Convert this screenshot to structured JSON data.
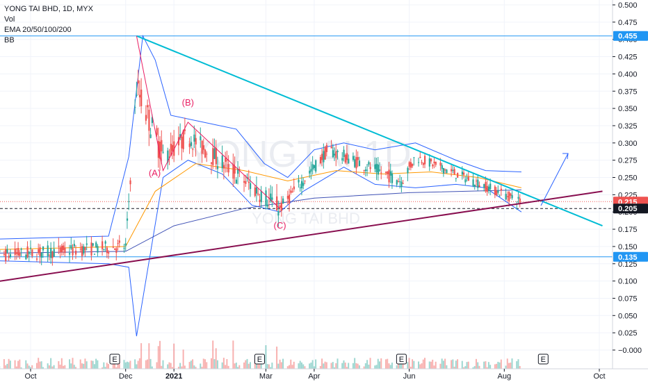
{
  "legend": {
    "symbol_line": "YONG TAI BHD, 1D, MYX",
    "vol": "Vol",
    "ema": "EMA 20/50/100/200",
    "bb": "BB"
  },
  "watermark": {
    "big": "YONGTAI 1D",
    "small": "YONG TAI BHD"
  },
  "wave_labels": [
    "(A)",
    "(B)",
    "(C)"
  ],
  "earnings_marker": "E",
  "chart_data": {
    "type": "candlestick",
    "title": "YONG TAI BHD, 1D, MYX",
    "y_ticks": [
      "0.500",
      "0.475",
      "0.450",
      "0.425",
      "0.400",
      "0.375",
      "0.350",
      "0.325",
      "0.300",
      "0.275",
      "0.250",
      "0.225",
      "0.200",
      "0.175",
      "0.150",
      "0.125",
      "0.100",
      "0.075",
      "0.050",
      "0.025",
      "−0.000"
    ],
    "x_ticks": [
      "Oct",
      "Dec",
      "2021",
      "Mar",
      "Apr",
      "Jun",
      "Aug",
      "Oct"
    ],
    "ylim": [
      -0.01,
      0.51
    ],
    "price_badges": [
      {
        "label": "0.455",
        "value": 0.455,
        "color": "#2196f3"
      },
      {
        "label": "0.215",
        "value": 0.215,
        "color": "#ef5350"
      },
      {
        "label": "0.205",
        "value": 0.205,
        "color": "#131722"
      },
      {
        "label": "0.135",
        "value": 0.135,
        "color": "#2196f3"
      }
    ],
    "horizontal_lines": [
      {
        "value": 0.455,
        "color": "#2196f3",
        "style": "solid"
      },
      {
        "value": 0.135,
        "color": "#2196f3",
        "style": "solid"
      },
      {
        "value": 0.215,
        "color": "#ef5350",
        "style": "dotted"
      },
      {
        "value": 0.205,
        "color": "#131722",
        "style": "dashed"
      }
    ],
    "trendlines": [
      {
        "name": "descending resistance",
        "color": "#00bcd4",
        "from": {
          "date": "2020-12-08",
          "value": 0.455
        },
        "to": {
          "date": "2021-10-03",
          "value": 0.18
        }
      },
      {
        "name": "ascending support",
        "color": "#880e4f",
        "from": {
          "date": "2020-08-28",
          "value": 0.095
        },
        "to": {
          "date": "2021-10-03",
          "value": 0.23
        }
      }
    ],
    "wave_points": [
      {
        "label": "(A)",
        "date": "2020-12-25",
        "value": 0.26
      },
      {
        "label": "(B)",
        "date": "2021-01-10",
        "value": 0.34
      },
      {
        "label": "(C)",
        "date": "2021-03-10",
        "value": 0.19
      }
    ],
    "earnings_dates": [
      "2020-11-24",
      "2021-02-25",
      "2021-05-27",
      "2021-08-26"
    ],
    "series": [
      {
        "name": "price",
        "type": "candlestick",
        "segments": [
          {
            "start": "2020-08-28",
            "end": "2020-12-01",
            "from": 0.135,
            "to": 0.15,
            "noise": 0.02
          },
          {
            "start": "2020-12-01",
            "end": "2020-12-08",
            "from": 0.15,
            "to": 0.38,
            "noise": 0.02
          },
          {
            "start": "2020-12-08",
            "end": "2020-12-25",
            "from": 0.38,
            "to": 0.28,
            "noise": 0.04
          },
          {
            "start": "2020-12-25",
            "end": "2021-01-10",
            "from": 0.28,
            "to": 0.31,
            "noise": 0.03
          },
          {
            "start": "2021-01-10",
            "end": "2021-03-10",
            "from": 0.31,
            "to": 0.205,
            "noise": 0.03
          },
          {
            "start": "2021-03-10",
            "end": "2021-04-10",
            "from": 0.205,
            "to": 0.29,
            "noise": 0.02
          },
          {
            "start": "2021-04-10",
            "end": "2021-05-27",
            "from": 0.29,
            "to": 0.245,
            "noise": 0.02
          },
          {
            "start": "2021-05-27",
            "end": "2021-06-05",
            "from": 0.245,
            "to": 0.28,
            "noise": 0.02
          },
          {
            "start": "2021-06-05",
            "end": "2021-08-12",
            "from": 0.28,
            "to": 0.215,
            "noise": 0.015
          }
        ]
      },
      {
        "name": "BB upper",
        "color": "#2962ff",
        "points": [
          [
            "2020-08-28",
            0.16
          ],
          [
            "2020-11-20",
            0.165
          ],
          [
            "2020-12-03",
            0.28
          ],
          [
            "2020-12-12",
            0.455
          ],
          [
            "2020-12-20",
            0.42
          ],
          [
            "2020-12-30",
            0.34
          ],
          [
            "2021-01-20",
            0.33
          ],
          [
            "2021-02-10",
            0.32
          ],
          [
            "2021-02-28",
            0.27
          ],
          [
            "2021-03-15",
            0.25
          ],
          [
            "2021-04-01",
            0.29
          ],
          [
            "2021-04-20",
            0.3
          ],
          [
            "2021-05-10",
            0.29
          ],
          [
            "2021-06-05",
            0.3
          ],
          [
            "2021-07-01",
            0.275
          ],
          [
            "2021-07-20",
            0.26
          ],
          [
            "2021-08-12",
            0.258
          ]
        ]
      },
      {
        "name": "BB lower",
        "color": "#2962ff",
        "points": [
          [
            "2020-08-28",
            0.13
          ],
          [
            "2020-11-20",
            0.125
          ],
          [
            "2020-12-03",
            0.12
          ],
          [
            "2020-12-08",
            0.02
          ],
          [
            "2020-12-25",
            0.25
          ],
          [
            "2021-01-10",
            0.275
          ],
          [
            "2021-02-01",
            0.255
          ],
          [
            "2021-02-20",
            0.21
          ],
          [
            "2021-03-10",
            0.2
          ],
          [
            "2021-03-25",
            0.23
          ],
          [
            "2021-04-20",
            0.265
          ],
          [
            "2021-05-10",
            0.24
          ],
          [
            "2021-06-05",
            0.235
          ],
          [
            "2021-07-01",
            0.24
          ],
          [
            "2021-07-20",
            0.235
          ],
          [
            "2021-08-12",
            0.2
          ]
        ]
      },
      {
        "name": "BB basis",
        "color": "#ff9800",
        "points": [
          [
            "2020-08-28",
            0.145
          ],
          [
            "2020-12-01",
            0.15
          ],
          [
            "2020-12-20",
            0.23
          ],
          [
            "2021-01-15",
            0.27
          ],
          [
            "2021-02-15",
            0.26
          ],
          [
            "2021-03-15",
            0.245
          ],
          [
            "2021-04-15",
            0.26
          ],
          [
            "2021-05-15",
            0.255
          ],
          [
            "2021-06-15",
            0.258
          ],
          [
            "2021-07-15",
            0.25
          ],
          [
            "2021-08-12",
            0.235
          ]
        ]
      },
      {
        "name": "EMA 200",
        "color": "#3f51b5",
        "points": [
          [
            "2020-08-28",
            0.14
          ],
          [
            "2020-12-01",
            0.143
          ],
          [
            "2021-01-01",
            0.18
          ],
          [
            "2021-02-15",
            0.205
          ],
          [
            "2021-04-01",
            0.22
          ],
          [
            "2021-06-01",
            0.228
          ],
          [
            "2021-08-12",
            0.232
          ]
        ]
      }
    ],
    "volume": {
      "color_up": "#26a69a",
      "color_down": "#ef5350",
      "note": "volume histogram along bottom"
    }
  }
}
